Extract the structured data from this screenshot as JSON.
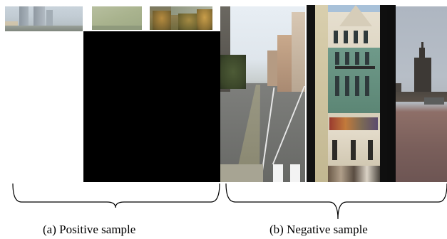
{
  "figure": {
    "positive_caption": "(a)  Positive sample",
    "negative_caption": "(b) Negative sample"
  },
  "colors": {
    "background": "#ffffff",
    "black_block": "#000000",
    "brace": "#000000"
  }
}
